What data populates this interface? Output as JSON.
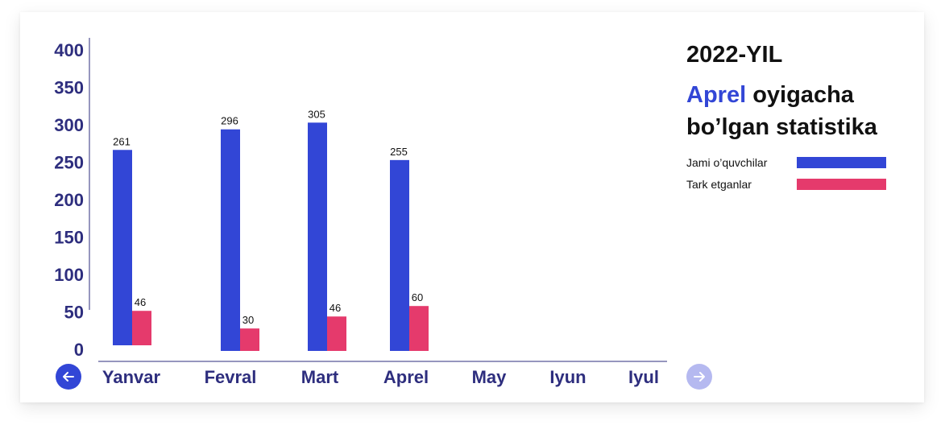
{
  "chart_data": {
    "type": "bar",
    "title": "2022-YIL",
    "subtitle": {
      "highlight": "Aprel",
      "line1_rest": " oyigacha",
      "line2": "bo’lgan statistika"
    },
    "categories": [
      "Yanvar",
      "Fevral",
      "Mart",
      "Aprel",
      "May",
      "Iyun",
      "Iyul"
    ],
    "series": [
      {
        "name": "Jami o’quvchilar",
        "color": "#3246d6",
        "values": [
          261,
          296,
          305,
          255,
          null,
          null,
          null
        ]
      },
      {
        "name": "Tark etganlar",
        "color": "#e53a6c",
        "values": [
          46,
          30,
          46,
          60,
          null,
          null,
          null
        ]
      }
    ],
    "y_ticks": [
      "400",
      "350",
      "300",
      "250",
      "200",
      "150",
      "100",
      "50",
      "0"
    ],
    "ylim": [
      0,
      400
    ],
    "grid": false,
    "legend_position": "right",
    "axis_color": "#2e2e7e"
  },
  "nav": {
    "prev_icon": "arrow-left-icon",
    "next_icon": "arrow-right-icon",
    "prev_color": "#3246d6",
    "next_color": "#b5b9f0"
  }
}
